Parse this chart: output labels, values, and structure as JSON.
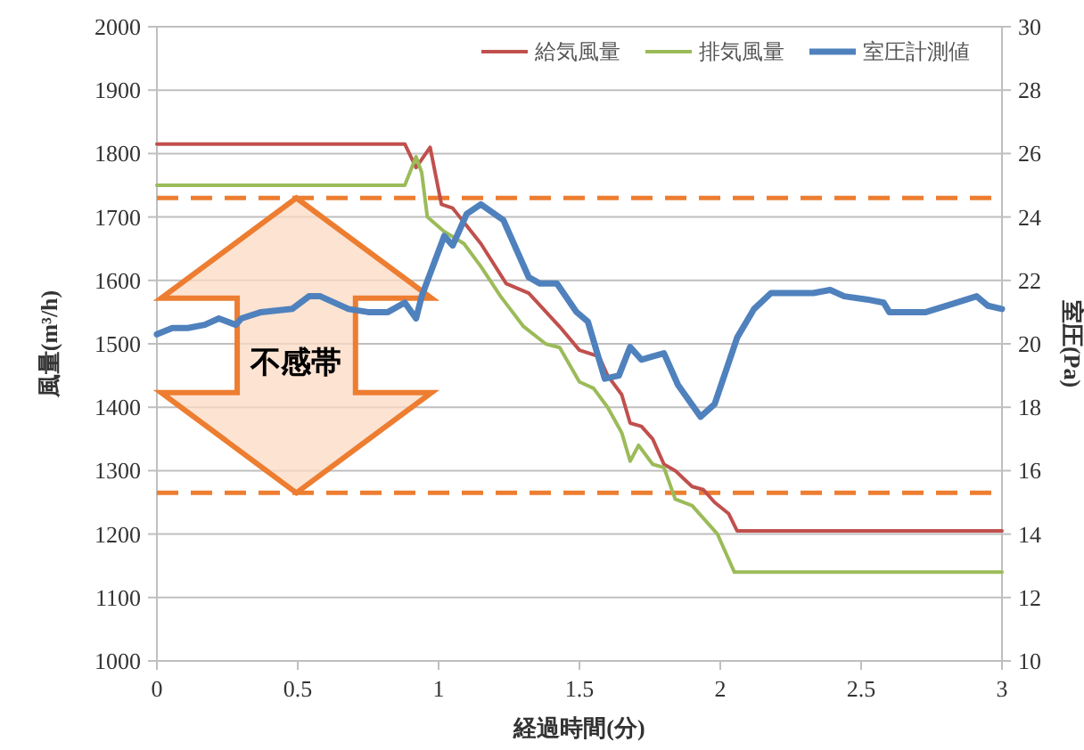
{
  "chart_data": {
    "type": "line",
    "xlabel": "経過時間(分)",
    "ylabel": "風量(m³/h)",
    "y2label": "室圧(Pa)",
    "xlim": [
      0,
      3
    ],
    "xticks": [
      0,
      0.5,
      1,
      1.5,
      2,
      2.5,
      3
    ],
    "ylim": [
      1000,
      2000
    ],
    "yticks": [
      1000,
      1100,
      1200,
      1300,
      1400,
      1500,
      1600,
      1700,
      1800,
      1900,
      2000
    ],
    "y2lim": [
      10,
      30
    ],
    "y2ticks": [
      10,
      12,
      14,
      16,
      18,
      20,
      22,
      24,
      26,
      28,
      30
    ],
    "grid": "y",
    "legend": "top right",
    "series": [
      {
        "name": "給気風量",
        "color": "#c0504d",
        "x": [
          0,
          0.88,
          0.92,
          0.97,
          1.01,
          1.05,
          1.15,
          1.24,
          1.32,
          1.43,
          1.5,
          1.57,
          1.6,
          1.65,
          1.68,
          1.72,
          1.76,
          1.8,
          1.84,
          1.9,
          1.94,
          1.98,
          2.03,
          2.06,
          3
        ],
        "values": [
          1815,
          1815,
          1778,
          1810,
          1720,
          1714,
          1658,
          1595,
          1580,
          1527,
          1490,
          1480,
          1450,
          1420,
          1375,
          1370,
          1350,
          1310,
          1300,
          1275,
          1270,
          1250,
          1232,
          1205,
          1205
        ]
      },
      {
        "name": "排気風量",
        "color": "#9bbb59",
        "x": [
          0,
          0.88,
          0.92,
          0.94,
          0.96,
          1.02,
          1.09,
          1.15,
          1.22,
          1.3,
          1.38,
          1.43,
          1.5,
          1.55,
          1.6,
          1.65,
          1.68,
          1.71,
          1.76,
          1.8,
          1.84,
          1.9,
          1.95,
          1.99,
          2.02,
          2.05,
          3
        ],
        "values": [
          1750,
          1750,
          1795,
          1770,
          1700,
          1677,
          1658,
          1622,
          1575,
          1528,
          1500,
          1494,
          1440,
          1430,
          1400,
          1360,
          1315,
          1340,
          1310,
          1305,
          1255,
          1245,
          1220,
          1200,
          1170,
          1140,
          1140
        ]
      },
      {
        "name": "室圧計測値",
        "color": "#4f81bd",
        "axis": "y2",
        "x": [
          0,
          0.055,
          0.11,
          0.17,
          0.22,
          0.28,
          0.3,
          0.37,
          0.48,
          0.54,
          0.58,
          0.68,
          0.75,
          0.82,
          0.88,
          0.92,
          0.94,
          1.02,
          1.05,
          1.1,
          1.15,
          1.23,
          1.32,
          1.36,
          1.42,
          1.49,
          1.53,
          1.59,
          1.64,
          1.68,
          1.72,
          1.76,
          1.8,
          1.85,
          1.93,
          1.98,
          2.06,
          2.12,
          2.18,
          2.21,
          2.33,
          2.39,
          2.44,
          2.52,
          2.58,
          2.6,
          2.73,
          2.84,
          2.91,
          2.95,
          3
        ],
        "values": [
          20.3,
          20.5,
          20.5,
          20.6,
          20.8,
          20.6,
          20.8,
          21.0,
          21.1,
          21.5,
          21.5,
          21.1,
          21.0,
          21.0,
          21.3,
          20.8,
          21.5,
          23.4,
          23.1,
          24.1,
          24.4,
          23.9,
          22.1,
          21.9,
          21.9,
          21.0,
          20.7,
          18.9,
          19.0,
          19.9,
          19.5,
          19.6,
          19.7,
          18.7,
          17.7,
          18.1,
          20.2,
          21.1,
          21.6,
          21.6,
          21.6,
          21.7,
          21.5,
          21.4,
          21.3,
          21.0,
          21.0,
          21.3,
          21.5,
          21.2,
          21.1
        ]
      }
    ],
    "ref_lines": [
      {
        "axis": "y2",
        "value": 24.6,
        "color": "#ed7d31",
        "line_style": "dashed"
      },
      {
        "axis": "y2",
        "value": 15.3,
        "color": "#ed7d31",
        "line_style": "dashed"
      }
    ],
    "annotations": [
      "不感帯"
    ]
  }
}
